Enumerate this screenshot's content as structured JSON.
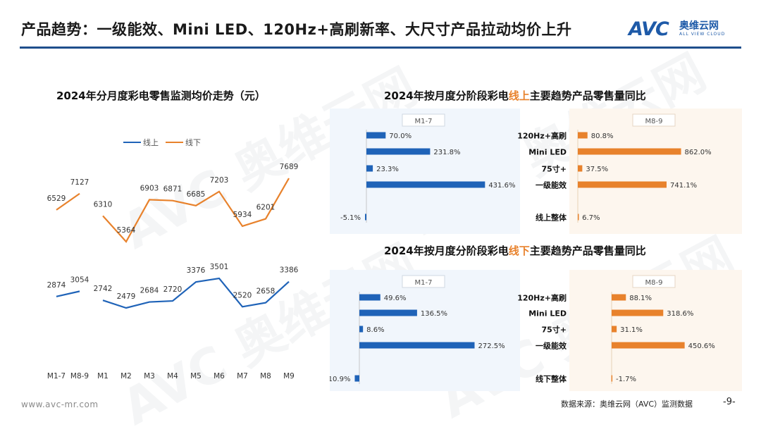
{
  "header": {
    "title": "产品趋势：一级能效、Mini LED、120Hz+高刷新率、大尺寸产品拉动均价上升",
    "logo_mark": "AVC",
    "logo_cn": "奥维云网",
    "logo_en": "ALL VIEW CLOUD"
  },
  "footer": {
    "url": "www.avc-mr.com",
    "source": "数据来源：奥维云网（AVC）监测数据",
    "page": "-9-"
  },
  "colors": {
    "online": "#1f63b8",
    "offline": "#e8822c",
    "rule": "#1f4e8c"
  },
  "line_panel": {
    "title": "2024年分月度彩电零售监测均价走势（元）"
  },
  "bar_top": {
    "title_pre": "2024年按月度分阶段彩电",
    "title_hl": "线上",
    "title_post": "主要趋势产品零售量同比"
  },
  "bar_bottom": {
    "title_pre": "2024年按月度分阶段彩电",
    "title_hl": "线下",
    "title_post": "主要趋势产品零售量同比"
  },
  "chart_data": [
    {
      "type": "line",
      "title": "2024年分月度彩电零售监测均价走势（元）",
      "categories": [
        "M1-7",
        "M8-9",
        "M1",
        "M2",
        "M3",
        "M4",
        "M5",
        "M6",
        "M7",
        "M8",
        "M9"
      ],
      "legend_position": "top-left",
      "series": [
        {
          "name": "线上",
          "color": "#1f63b8",
          "values": [
            2874,
            3054,
            2742,
            2479,
            2684,
            2720,
            3376,
            3501,
            2520,
            2658,
            3386
          ]
        },
        {
          "name": "线下",
          "color": "#e8822c",
          "values": [
            6529,
            7127,
            6310,
            5364,
            6903,
            6871,
            6685,
            7203,
            5934,
            6201,
            7689
          ]
        }
      ]
    },
    {
      "type": "bar",
      "title": "2024年按月度分阶段彩电线上主要趋势产品零售量同比",
      "categories": [
        "120Hz+高刷",
        "Mini LED",
        "75寸+",
        "一级能效",
        "线上整体"
      ],
      "series": [
        {
          "name": "M1-7",
          "color": "#1f63b8",
          "values": [
            70.0,
            231.8,
            23.3,
            431.6,
            -5.1
          ],
          "labels": [
            "70.0%",
            "231.8%",
            "23.3%",
            "431.6%",
            "-5.1%"
          ]
        },
        {
          "name": "M8-9",
          "color": "#e8822c",
          "values": [
            80.8,
            862.0,
            37.5,
            741.1,
            6.7
          ],
          "labels": [
            "80.8%",
            "862.0%",
            "37.5%",
            "741.1%",
            "6.7%"
          ]
        }
      ]
    },
    {
      "type": "bar",
      "title": "2024年按月度分阶段彩电线下主要趋势产品零售量同比",
      "categories": [
        "120Hz+高刷",
        "Mini LED",
        "75寸+",
        "一级能效",
        "线下整体"
      ],
      "series": [
        {
          "name": "M1-7",
          "color": "#1f63b8",
          "values": [
            49.6,
            136.5,
            8.6,
            272.5,
            -10.9
          ],
          "labels": [
            "49.6%",
            "136.5%",
            "8.6%",
            "272.5%",
            "-10.9%"
          ]
        },
        {
          "name": "M8-9",
          "color": "#e8822c",
          "values": [
            88.1,
            318.6,
            31.1,
            450.6,
            -1.7
          ],
          "labels": [
            "88.1%",
            "318.6%",
            "31.1%",
            "450.6%",
            "-1.7%"
          ]
        }
      ]
    }
  ]
}
